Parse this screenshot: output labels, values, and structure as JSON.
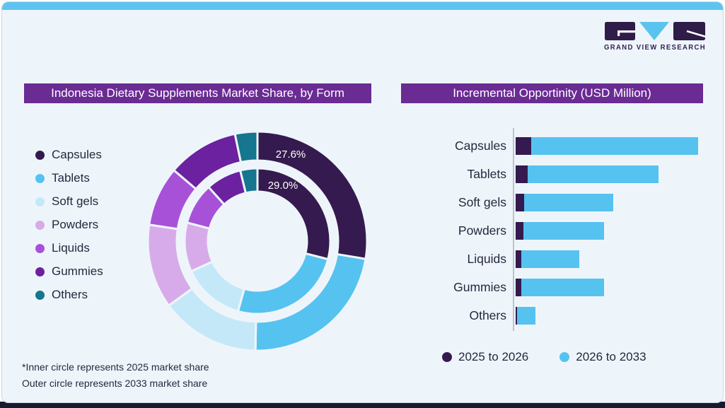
{
  "card": {
    "background": "#eef5fa",
    "top_bar_color": "#5ec4ef",
    "bottom_bar_color": "#191930",
    "banner_color": "#6a2b93"
  },
  "brand": {
    "logo_text": "GRAND VIEW RESEARCH",
    "logo_dark_color": "#2f1c49",
    "logo_blue_color": "#5ac3ee"
  },
  "left_panel": {
    "title": "Indonesia Dietary Supplements Market Share, by Form",
    "legend": [
      "Capsules",
      "Tablets",
      "Soft gels",
      "Powders",
      "Liquids",
      "Gummies",
      "Others"
    ],
    "donut_labels": {
      "outer": "27.6%",
      "inner": "29.0%"
    },
    "footnote": [
      "*Inner circle represents 2025 market share",
      "Outer circle represents 2033 market share"
    ]
  },
  "right_panel": {
    "title": "Incremental Opportinity (USD Million)",
    "legend": [
      {
        "label": "2025 to 2026",
        "color": "#341a4e"
      },
      {
        "label": "2026 to 2033",
        "color": "#56c2f0"
      }
    ]
  },
  "chart_data": [
    {
      "type": "donut",
      "title": "Indonesia Dietary Supplements Market Share, by Form",
      "categories": [
        "Capsules",
        "Tablets",
        "Soft gels",
        "Powders",
        "Liquids",
        "Gummies",
        "Others"
      ],
      "colors": [
        "#341a4e",
        "#56c2f0",
        "#c5e8f8",
        "#d7abe9",
        "#a751d8",
        "#6c21a0",
        "#16758f"
      ],
      "rings": [
        {
          "name": "2025 market share (inner circle)",
          "values": [
            29.0,
            25.3,
            13.9,
            10.9,
            9.2,
            7.9,
            3.8
          ]
        },
        {
          "name": "2033 market share (outer circle)",
          "values": [
            27.6,
            22.7,
            14.7,
            12.4,
            8.8,
            10.5,
            3.3
          ]
        }
      ],
      "data_labels": {
        "capsules_2033_outer": "27.6%",
        "capsules_2025_inner": "29.0%"
      },
      "note": "Only Capsules shares are labeled in the image; remaining values estimated from arc angles. Values in percent, each ring sums to 100."
    },
    {
      "type": "bar",
      "orientation": "horizontal",
      "stacked": true,
      "title": "Incremental Opportinity (USD Million)",
      "categories": [
        "Capsules",
        "Tablets",
        "Soft gels",
        "Powders",
        "Liquids",
        "Gummies",
        "Others"
      ],
      "series": [
        {
          "name": "2025 to 2026",
          "color": "#341a4e",
          "values": [
            8.5,
            6.6,
            4.7,
            4.3,
            3.1,
            3.1,
            0.8
          ]
        },
        {
          "name": "2026 to 2033",
          "color": "#56c2f0",
          "values": [
            91.5,
            71.7,
            48.8,
            44.2,
            31.8,
            45.3,
            10.1
          ]
        }
      ],
      "value_axis": {
        "labels_shown": false,
        "unit": "USD Million",
        "note": "No numeric scale shown; values are relative lengths normalized so the longest total bar (Capsules) = 100."
      },
      "legend_position": "bottom"
    }
  ]
}
